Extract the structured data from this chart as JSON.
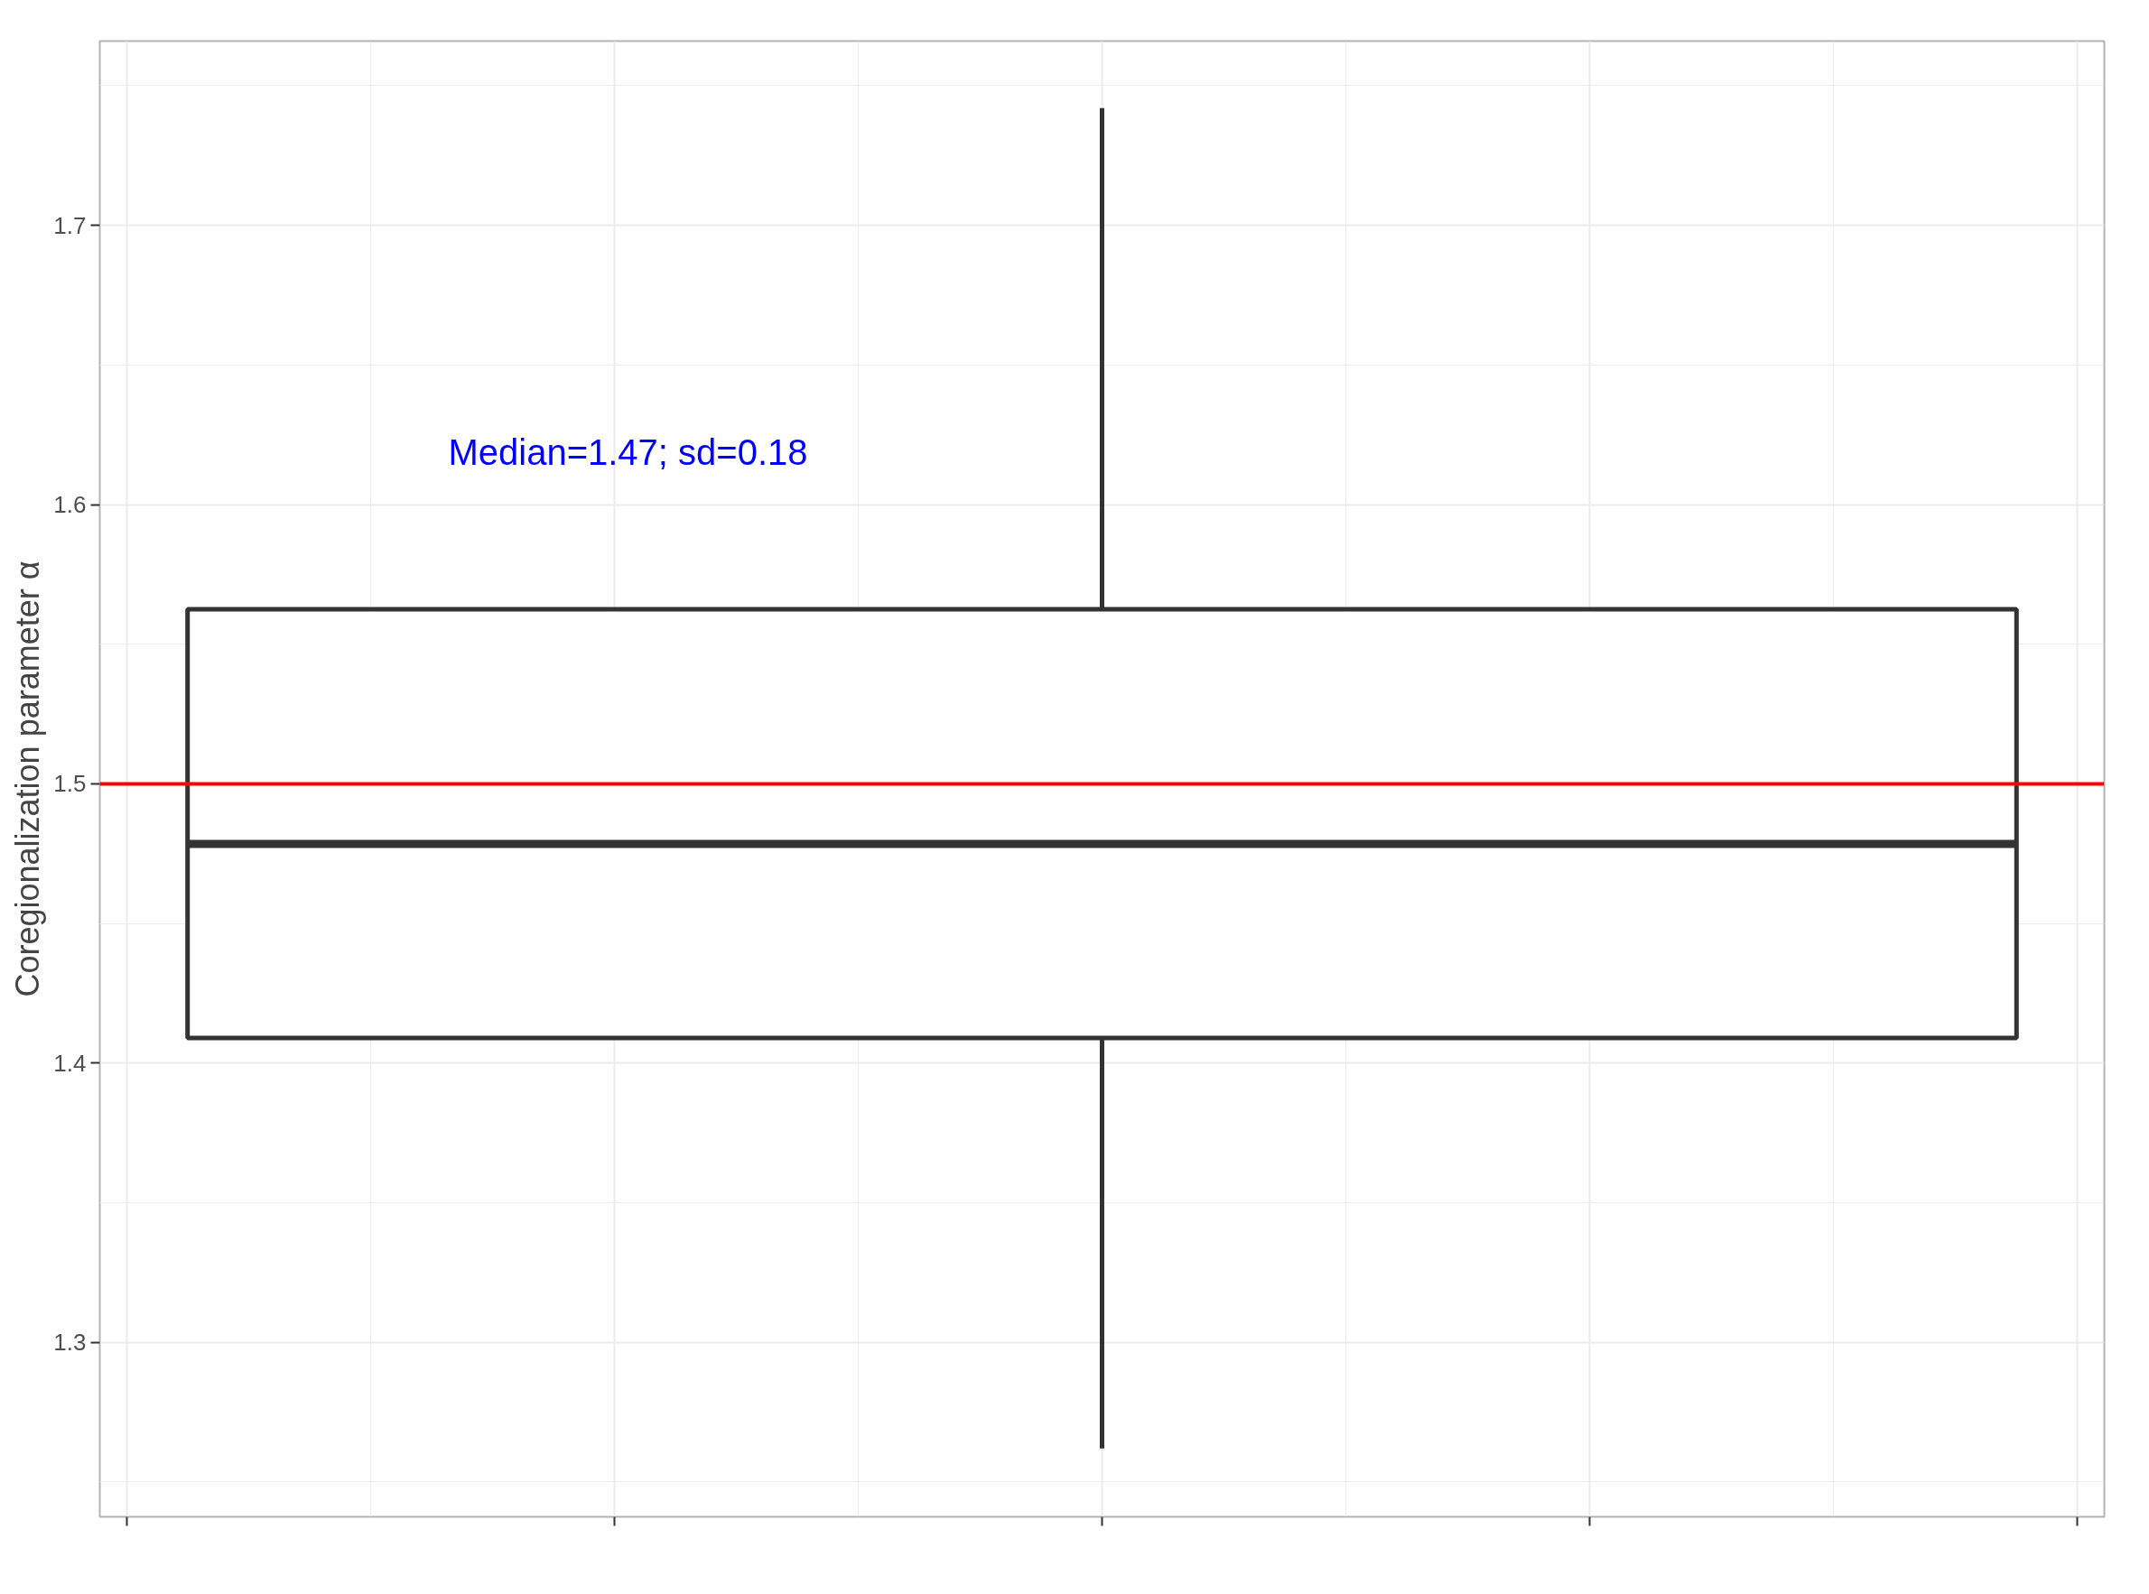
{
  "chart_data": {
    "type": "box",
    "categories": [
      null
    ],
    "boxes": [
      {
        "low": 1.262,
        "q1": 1.409,
        "median": 1.4785,
        "q3": 1.5625,
        "high": 1.742
      }
    ],
    "color": "#333333",
    "ylabel": "Coregionalization parameter α",
    "ylim": [
      1.2375,
      1.766
    ],
    "yticks": [
      1.3,
      1.4,
      1.5,
      1.6,
      1.7
    ],
    "grid": true,
    "ref_lines": [
      {
        "axis": "y",
        "value": 1.5,
        "color": "#ff0000"
      }
    ],
    "annotations": [
      "Median=1.47; sd=0.18"
    ]
  }
}
